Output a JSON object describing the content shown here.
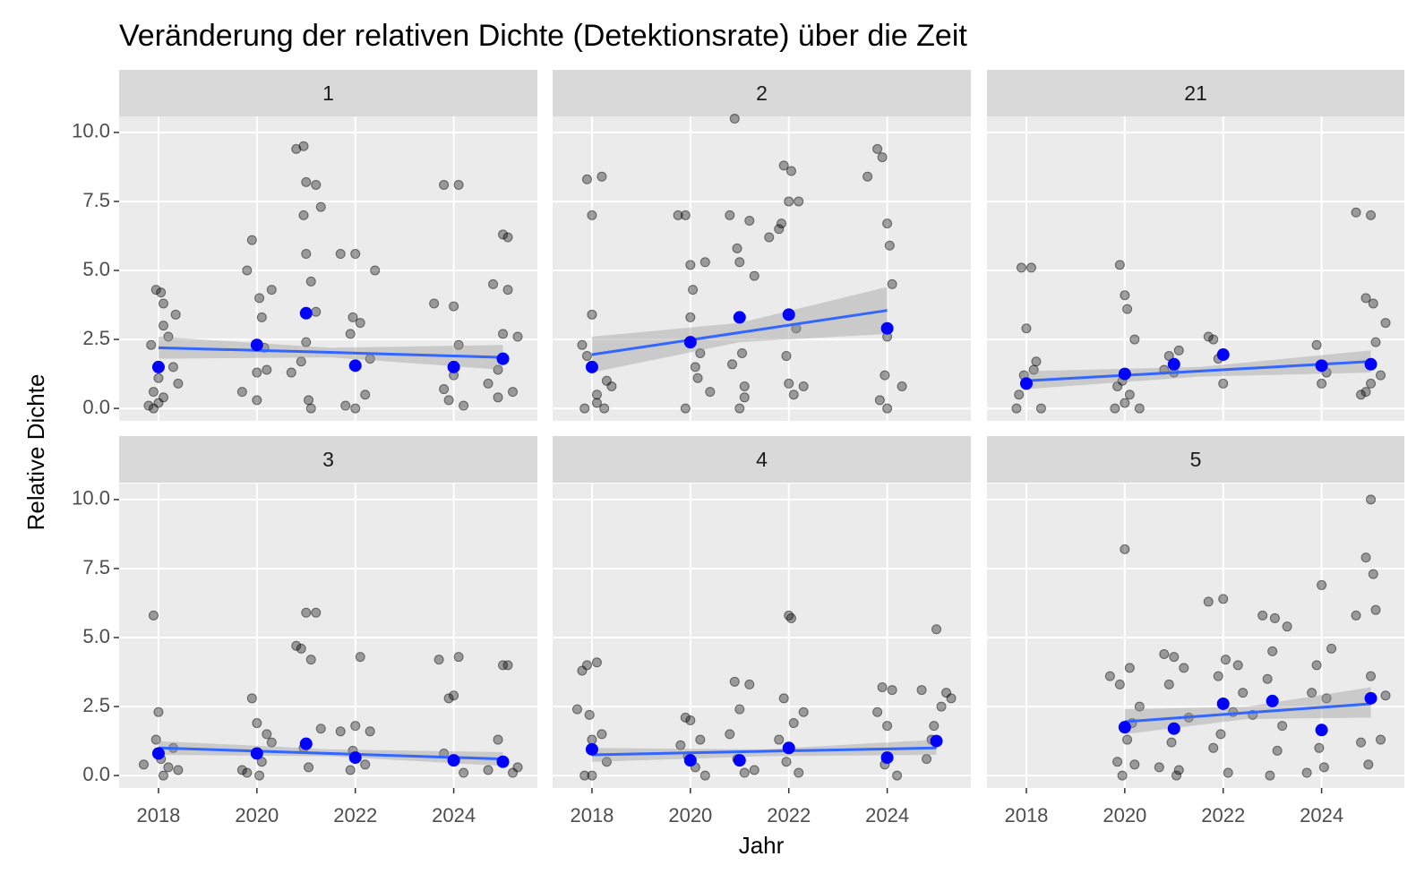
{
  "chart_data": {
    "type": "scatter",
    "title": "Veränderung der relativen Dichte (Detektionsrate) über die Zeit",
    "xlabel": "Jahr",
    "ylabel": "Relative Dichte",
    "xlim": [
      2017.2,
      2025.7
    ],
    "ylim": [
      -0.45,
      10.58
    ],
    "xticks": [
      2018,
      2020,
      2022,
      2024
    ],
    "yticks": [
      {
        "value": 0,
        "label": "0.0"
      },
      2.5,
      {
        "value": 5,
        "label": "5.0"
      },
      7.5,
      {
        "value": 10,
        "label": "10.0"
      }
    ],
    "grid": true,
    "point_color": "#000000",
    "mean_color": "#0000ff",
    "trend_color": "#3366ff",
    "ribbon_color": "#999999",
    "panel_background": "#ebebeb",
    "strip_background": "#d9d9d9",
    "panels": [
      {
        "name": "1",
        "points": {
          "x": [
            2017.8,
            2017.9,
            2018.0,
            2018.1,
            2017.85,
            2017.95,
            2018.05,
            2018.1,
            2018.2,
            2018.3,
            2018.35,
            2018.4,
            2018.0,
            2018.1,
            2017.9,
            2019.8,
            2019.9,
            2020.0,
            2020.05,
            2020.1,
            2020.2,
            2020.3,
            2019.7,
            2020.15,
            2020.0,
            2020.7,
            2020.8,
            2020.95,
            2021.0,
            2020.95,
            2021.0,
            2021.1,
            2021.2,
            2021.3,
            2021.05,
            2021.1,
            2021.2,
            2020.9,
            2021.0,
            2021.7,
            2021.8,
            2021.9,
            2022.0,
            2022.0,
            2022.1,
            2022.2,
            2022.3,
            2022.4,
            2021.95,
            2023.6,
            2023.8,
            2023.9,
            2024.0,
            2024.1,
            2024.0,
            2023.8,
            2024.2,
            2024.1,
            2024.7,
            2024.8,
            2024.9,
            2025.0,
            2025.0,
            2025.1,
            2025.1,
            2025.2,
            2025.3,
            2024.9
          ],
          "y": [
            0.1,
            0.0,
            0.2,
            0.4,
            2.3,
            4.3,
            4.2,
            3.8,
            2.6,
            1.5,
            3.4,
            0.9,
            1.1,
            3.0,
            0.6,
            5.0,
            6.1,
            1.3,
            4.0,
            3.3,
            1.4,
            4.3,
            0.6,
            2.2,
            0.3,
            1.3,
            9.4,
            9.5,
            8.2,
            7.0,
            5.6,
            4.6,
            3.5,
            7.3,
            0.3,
            0.0,
            8.1,
            1.7,
            2.4,
            5.6,
            0.1,
            2.7,
            5.6,
            0.0,
            3.1,
            0.5,
            1.8,
            5.0,
            3.3,
            3.8,
            8.1,
            0.3,
            3.7,
            8.1,
            1.2,
            0.7,
            0.1,
            2.3,
            0.9,
            4.5,
            0.4,
            6.3,
            2.7,
            6.2,
            4.3,
            0.6,
            2.6,
            1.4
          ]
        },
        "means": {
          "x": [
            2018,
            2020,
            2021,
            2022,
            2024,
            2025
          ],
          "y": [
            1.5,
            2.3,
            3.45,
            1.55,
            1.5,
            1.8
          ]
        },
        "trend": {
          "x": [
            2018,
            2021.5,
            2025
          ],
          "y": [
            2.2,
            2.03,
            1.85
          ],
          "lower": [
            1.8,
            1.85,
            1.4
          ],
          "upper": [
            2.6,
            2.2,
            2.3
          ]
        }
      },
      {
        "name": "2",
        "points": {
          "x": [
            2017.8,
            2017.9,
            2018.0,
            2018.1,
            2018.2,
            2018.4,
            2017.85,
            2018.0,
            2018.3,
            2018.1,
            2017.9,
            2018.25,
            2019.75,
            2019.9,
            2020.0,
            2020.05,
            2020.1,
            2020.2,
            2020.3,
            2019.9,
            2020.0,
            2020.15,
            2020.4,
            2020.8,
            2020.9,
            2021.0,
            2020.95,
            2021.05,
            2021.1,
            2021.2,
            2020.85,
            2021.0,
            2021.3,
            2021.1,
            2021.6,
            2021.8,
            2021.9,
            2022.0,
            2022.05,
            2022.1,
            2022.2,
            2021.95,
            2022.0,
            2022.15,
            2022.3,
            2021.85,
            2023.6,
            2023.8,
            2023.9,
            2024.0,
            2024.05,
            2023.95,
            2024.0,
            2024.1,
            2023.85,
            2024.3,
            2024.0
          ],
          "y": [
            2.3,
            8.3,
            7.0,
            0.5,
            8.4,
            0.8,
            0.0,
            3.4,
            1.0,
            0.2,
            1.9,
            0.0,
            7.0,
            7.0,
            5.2,
            4.3,
            1.5,
            2.0,
            5.3,
            0.0,
            3.3,
            1.1,
            0.6,
            7.0,
            10.5,
            5.3,
            5.8,
            2.0,
            0.4,
            6.8,
            1.6,
            0.0,
            4.8,
            0.8,
            6.2,
            6.5,
            8.8,
            7.5,
            8.6,
            0.5,
            7.5,
            1.9,
            0.9,
            2.9,
            0.8,
            6.7,
            8.4,
            9.4,
            9.1,
            6.7,
            5.9,
            1.2,
            0.0,
            4.5,
            0.3,
            0.8,
            2.6
          ]
        },
        "means": {
          "x": [
            2018,
            2020,
            2021,
            2022,
            2024
          ],
          "y": [
            1.5,
            2.4,
            3.3,
            3.4,
            2.9
          ]
        },
        "trend": {
          "x": [
            2018,
            2021,
            2024
          ],
          "y": [
            1.95,
            2.75,
            3.55
          ],
          "lower": [
            1.3,
            2.4,
            2.7
          ],
          "upper": [
            2.6,
            3.1,
            4.4
          ]
        }
      },
      {
        "name": "21",
        "points": {
          "x": [
            2017.8,
            2017.9,
            2018.0,
            2018.1,
            2018.2,
            2018.3,
            2017.85,
            2018.0,
            2018.15,
            2017.95,
            2019.8,
            2019.9,
            2020.0,
            2020.05,
            2020.1,
            2019.95,
            2020.2,
            2020.3,
            2020.0,
            2019.85,
            2020.8,
            2020.9,
            2021.1,
            2021.0,
            2021.7,
            2021.8,
            2022.0,
            2021.9,
            2023.9,
            2024.0,
            2024.1,
            2024.7,
            2024.8,
            2024.9,
            2025.0,
            2025.05,
            2025.1,
            2025.2,
            2025.3,
            2024.9,
            2025.0
          ],
          "y": [
            0.0,
            5.1,
            2.9,
            5.1,
            1.7,
            0.0,
            0.5,
            0.9,
            1.4,
            1.2,
            0.0,
            5.2,
            4.1,
            3.6,
            0.5,
            1.0,
            2.5,
            0.0,
            0.2,
            0.8,
            1.4,
            1.9,
            2.1,
            1.3,
            2.6,
            2.5,
            0.9,
            1.8,
            2.3,
            0.9,
            1.3,
            7.1,
            0.5,
            4.0,
            7.0,
            3.8,
            2.4,
            1.2,
            3.1,
            0.6,
            0.9
          ]
        },
        "means": {
          "x": [
            2018,
            2020,
            2021,
            2022,
            2024,
            2025
          ],
          "y": [
            0.9,
            1.25,
            1.6,
            1.95,
            1.55,
            1.6
          ]
        },
        "trend": {
          "x": [
            2018,
            2021.5,
            2025
          ],
          "y": [
            1.0,
            1.35,
            1.7
          ],
          "lower": [
            0.7,
            1.15,
            1.3
          ],
          "upper": [
            1.35,
            1.5,
            2.1
          ]
        }
      },
      {
        "name": "3",
        "points": {
          "x": [
            2017.7,
            2017.9,
            2018.0,
            2018.05,
            2018.1,
            2018.2,
            2018.3,
            2017.95,
            2018.4,
            2019.8,
            2019.9,
            2020.0,
            2020.1,
            2020.2,
            2019.7,
            2020.3,
            2020.05,
            2020.8,
            2020.9,
            2021.0,
            2021.1,
            2021.2,
            2021.05,
            2021.3,
            2020.95,
            2021.7,
            2021.9,
            2022.0,
            2022.1,
            2022.2,
            2022.3,
            2021.95,
            2023.7,
            2023.9,
            2024.0,
            2024.1,
            2024.2,
            2023.8,
            2024.7,
            2024.9,
            2025.0,
            2025.1,
            2025.2,
            2025.3
          ],
          "y": [
            0.4,
            5.8,
            2.3,
            0.6,
            0.0,
            0.3,
            1.0,
            1.3,
            0.2,
            0.1,
            2.8,
            1.9,
            0.5,
            1.5,
            0.2,
            1.2,
            0.0,
            4.7,
            4.6,
            5.9,
            4.2,
            5.9,
            0.3,
            1.7,
            1.0,
            1.6,
            0.2,
            1.8,
            4.3,
            0.4,
            1.6,
            0.9,
            4.2,
            2.8,
            2.9,
            4.3,
            0.1,
            0.8,
            0.2,
            1.3,
            4.0,
            4.0,
            0.1,
            0.3
          ]
        },
        "means": {
          "x": [
            2018,
            2020,
            2021,
            2022,
            2024,
            2025
          ],
          "y": [
            0.8,
            0.8,
            1.15,
            0.65,
            0.55,
            0.5
          ]
        },
        "trend": {
          "x": [
            2018,
            2021.5,
            2025
          ],
          "y": [
            1.0,
            0.8,
            0.6
          ],
          "lower": [
            0.75,
            0.7,
            0.35
          ],
          "upper": [
            1.25,
            0.95,
            0.85
          ]
        }
      },
      {
        "name": "4",
        "points": {
          "x": [
            2017.7,
            2017.8,
            2017.9,
            2018.0,
            2018.1,
            2018.2,
            2017.95,
            2018.3,
            2018.0,
            2017.85,
            2019.8,
            2019.9,
            2020.0,
            2020.1,
            2020.2,
            2020.3,
            2019.95,
            2020.8,
            2020.9,
            2021.0,
            2021.1,
            2021.2,
            2021.3,
            2020.95,
            2021.8,
            2021.9,
            2022.0,
            2022.05,
            2022.1,
            2022.2,
            2022.3,
            2021.95,
            2023.8,
            2023.9,
            2024.0,
            2024.1,
            2024.2,
            2023.95,
            2024.7,
            2024.8,
            2024.9,
            2025.0,
            2025.1,
            2025.2,
            2025.3,
            2024.95
          ],
          "y": [
            2.4,
            3.8,
            4.0,
            0.0,
            4.1,
            1.5,
            2.2,
            0.5,
            1.3,
            0.0,
            1.1,
            2.1,
            2.0,
            0.3,
            1.3,
            0.0,
            0.7,
            1.5,
            3.4,
            2.4,
            0.1,
            3.3,
            0.2,
            0.6,
            1.3,
            2.8,
            5.8,
            5.7,
            1.9,
            0.1,
            2.3,
            0.5,
            2.3,
            3.2,
            1.8,
            3.1,
            0.0,
            0.4,
            3.1,
            0.6,
            1.3,
            5.3,
            2.5,
            3.0,
            2.8,
            1.8
          ]
        },
        "means": {
          "x": [
            2018,
            2020,
            2021,
            2022,
            2024,
            2025
          ],
          "y": [
            0.95,
            0.55,
            0.55,
            1.0,
            0.65,
            1.25
          ]
        },
        "trend": {
          "x": [
            2018,
            2021.5,
            2025
          ],
          "y": [
            0.75,
            0.88,
            1.0
          ],
          "lower": [
            0.5,
            0.7,
            0.75
          ],
          "upper": [
            1.0,
            0.95,
            1.3
          ]
        }
      },
      {
        "name": "5",
        "points": {
          "x": [
            2019.7,
            2019.85,
            2019.9,
            2020.0,
            2020.05,
            2020.1,
            2020.2,
            2020.3,
            2019.95,
            2020.15,
            2020.7,
            2020.8,
            2020.9,
            2021.0,
            2021.1,
            2021.2,
            2021.3,
            2020.95,
            2021.05,
            2021.7,
            2021.8,
            2021.9,
            2022.0,
            2022.05,
            2022.1,
            2022.2,
            2022.3,
            2021.95,
            2022.4,
            2022.6,
            2022.8,
            2022.9,
            2023.0,
            2023.05,
            2023.1,
            2023.2,
            2023.3,
            2022.95,
            2023.7,
            2023.8,
            2023.9,
            2024.0,
            2024.05,
            2024.1,
            2024.2,
            2023.95,
            2024.7,
            2024.8,
            2024.9,
            2025.0,
            2025.05,
            2025.1,
            2025.2,
            2025.3,
            2024.95,
            2025.0
          ],
          "y": [
            3.6,
            0.5,
            3.3,
            8.2,
            1.3,
            3.9,
            0.4,
            2.5,
            0.0,
            1.9,
            0.3,
            4.4,
            3.3,
            4.3,
            0.2,
            3.9,
            2.1,
            1.2,
            0.0,
            6.3,
            1.0,
            3.6,
            6.4,
            4.2,
            0.1,
            2.3,
            4.0,
            1.5,
            3.0,
            2.2,
            5.8,
            3.5,
            4.5,
            5.7,
            0.9,
            1.8,
            5.4,
            0.0,
            0.1,
            3.0,
            4.0,
            6.9,
            0.3,
            2.8,
            4.6,
            1.0,
            5.8,
            1.2,
            7.9,
            10.0,
            7.3,
            6.0,
            1.3,
            2.9,
            0.4,
            3.6
          ]
        },
        "means": {
          "x": [
            2020,
            2021,
            2022,
            2023,
            2024,
            2025
          ],
          "y": [
            1.75,
            1.7,
            2.6,
            2.7,
            1.65,
            2.8
          ]
        },
        "trend": {
          "x": [
            2020,
            2022.5,
            2025
          ],
          "y": [
            1.95,
            2.28,
            2.6
          ],
          "lower": [
            1.5,
            2.05,
            2.1
          ],
          "upper": [
            2.4,
            2.5,
            3.2
          ]
        }
      }
    ]
  }
}
